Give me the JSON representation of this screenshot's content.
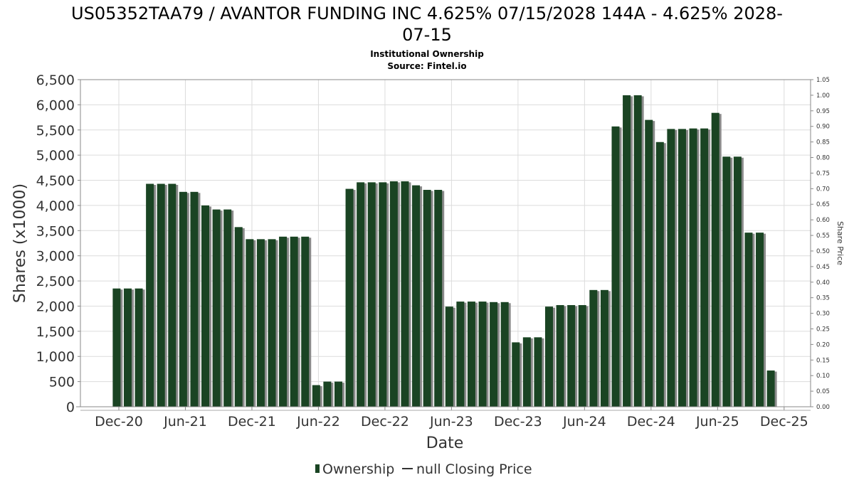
{
  "chart_data": {
    "type": "bar",
    "title_line1": "US05352TAA79 / AVANTOR FUNDING INC 4.625% 07/15/2028 144A - 4.625% 2028-",
    "title_line2": "07-15",
    "subtitle1": "Institutional Ownership",
    "subtitle2": "Source: Fintel.io",
    "xlabel": "Date",
    "ylabel": "Shares (x1000)",
    "y2label": "Share Price",
    "ylim": [
      0,
      6500
    ],
    "y2lim": [
      0,
      1.05
    ],
    "grid": true,
    "x_ticks": [
      "Dec-20",
      "Jun-21",
      "Dec-21",
      "Jun-22",
      "Dec-22",
      "Jun-23",
      "Dec-23",
      "Jun-24",
      "Dec-24",
      "Jun-25",
      "Dec-25"
    ],
    "y_ticks": [
      "0",
      "500",
      "1,000",
      "1,500",
      "2,000",
      "2,500",
      "3,000",
      "3,500",
      "4,000",
      "4,500",
      "5,000",
      "5,500",
      "6,000",
      "6,500"
    ],
    "y2_ticks": [
      "0.00",
      "0.05",
      "0.10",
      "0.15",
      "0.20",
      "0.25",
      "0.30",
      "0.35",
      "0.40",
      "0.45",
      "0.50",
      "0.55",
      "0.60",
      "0.65",
      "0.70",
      "0.75",
      "0.80",
      "0.85",
      "0.90",
      "0.95",
      "1.00",
      "1.05"
    ],
    "series": [
      {
        "name": "Ownership",
        "color": "#1a4423",
        "values": [
          2350,
          2350,
          2350,
          4430,
          4430,
          4430,
          4270,
          4270,
          4000,
          3920,
          3920,
          3570,
          3330,
          3330,
          3330,
          3380,
          3380,
          3380,
          430,
          500,
          500,
          4330,
          4460,
          4460,
          4460,
          4480,
          4480,
          4400,
          4310,
          4310,
          1990,
          2090,
          2090,
          2090,
          2080,
          2080,
          1280,
          1380,
          1380,
          1990,
          2020,
          2020,
          2020,
          2320,
          2320,
          5570,
          6190,
          6190,
          5700,
          5260,
          5520,
          5520,
          5530,
          5530,
          5840,
          4970,
          4970,
          3460,
          3460,
          720
        ]
      },
      {
        "name": "null Closing Price",
        "color": "#000000",
        "values": []
      }
    ],
    "legend_position": "bottom"
  }
}
